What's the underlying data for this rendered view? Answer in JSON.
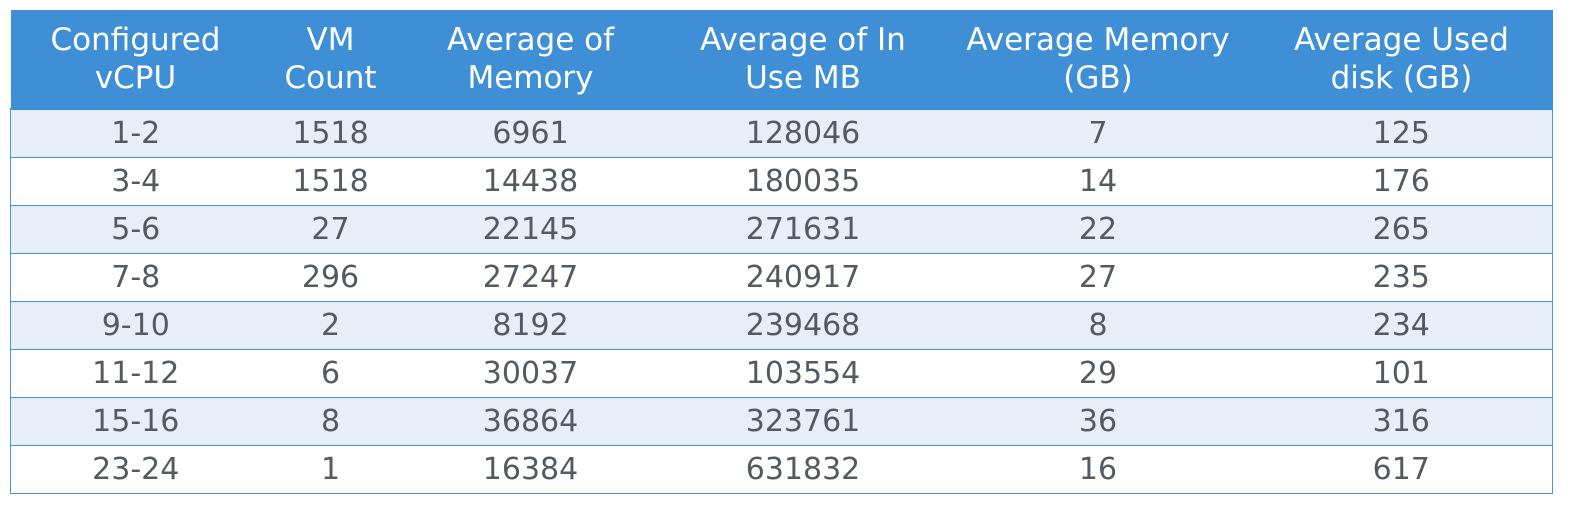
{
  "chart_data": {
    "type": "table",
    "columns": [
      "Configured vCPU",
      "VM Count",
      "Average of Memory",
      "Average of In Use MB",
      "Average Memory (GB)",
      "Average Used disk (GB)"
    ],
    "header_lines": [
      [
        "Configured",
        "vCPU"
      ],
      [
        "VM",
        "Count"
      ],
      [
        "Average of",
        "Memory"
      ],
      [
        "Average of In",
        "Use MB"
      ],
      [
        "Average Memory",
        "(GB)"
      ],
      [
        "Average Used",
        "disk (GB)"
      ]
    ],
    "rows": [
      [
        "1-2",
        "1518",
        "6961",
        "128046",
        "7",
        "125"
      ],
      [
        "3-4",
        "1518",
        "14438",
        "180035",
        "14",
        "176"
      ],
      [
        "5-6",
        "27",
        "22145",
        "271631",
        "22",
        "265"
      ],
      [
        "7-8",
        "296",
        "27247",
        "240917",
        "27",
        "235"
      ],
      [
        "9-10",
        "2",
        "8192",
        "239468",
        "8",
        "234"
      ],
      [
        "11-12",
        "6",
        "30037",
        "103554",
        "29",
        "101"
      ],
      [
        "15-16",
        "8",
        "36864",
        "323761",
        "36",
        "316"
      ],
      [
        "23-24",
        "1",
        "16384",
        "631832",
        "16",
        "617"
      ]
    ]
  },
  "colors": {
    "header_bg": "#3e8fd6",
    "header_text": "#ffffff",
    "row_alt_bg": "#e8eef8",
    "row_bg": "#ffffff",
    "cell_text": "#555a61",
    "border": "#4a94d8"
  }
}
